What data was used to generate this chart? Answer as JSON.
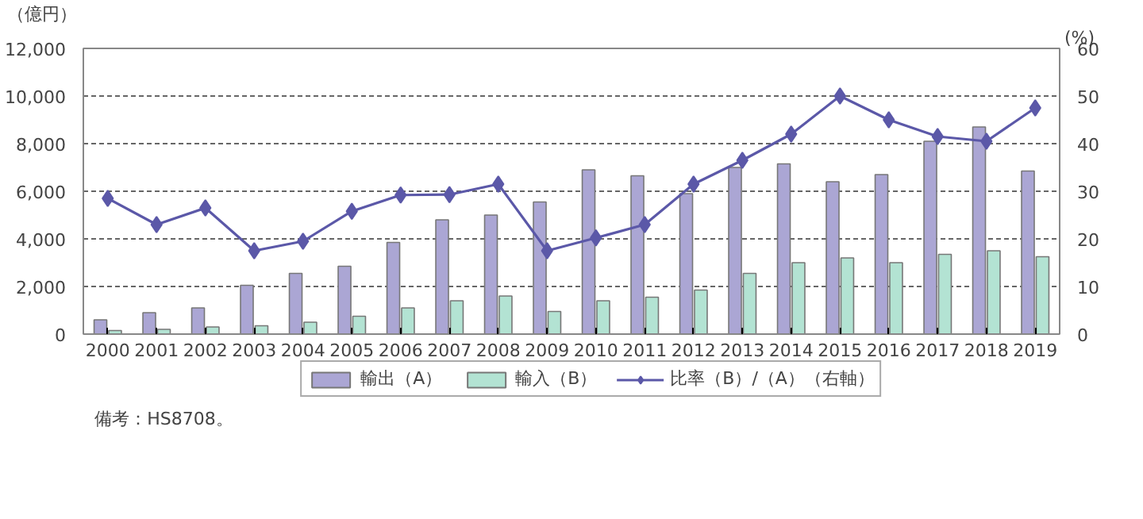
{
  "chart_data": {
    "type": "bar",
    "categories": [
      "2000",
      "2001",
      "2002",
      "2003",
      "2004",
      "2005",
      "2006",
      "2007",
      "2008",
      "2009",
      "2010",
      "2011",
      "2012",
      "2013",
      "2014",
      "2015",
      "2016",
      "2017",
      "2018",
      "2019"
    ],
    "series": [
      {
        "name": "輸出（A）",
        "color": "#aba6d4",
        "values": [
          600,
          900,
          1100,
          2050,
          2550,
          2850,
          3850,
          4800,
          5000,
          5550,
          6900,
          6650,
          5900,
          7000,
          7150,
          6400,
          6700,
          8100,
          8700,
          6850
        ]
      },
      {
        "name": "輸入（B）",
        "color": "#b3e3d3",
        "values": [
          150,
          200,
          300,
          350,
          500,
          750,
          1100,
          1400,
          1600,
          950,
          1400,
          1550,
          1850,
          2550,
          3000,
          3200,
          3000,
          3350,
          3500,
          3250
        ]
      },
      {
        "name": "比率（B）/（A）（右軸）",
        "type": "line",
        "axis": "y2",
        "color": "#5b58a8",
        "marker": "diamond",
        "values": [
          28.5,
          23,
          26.5,
          17.5,
          19.5,
          25.8,
          29.2,
          29.3,
          31.5,
          17.5,
          20.2,
          23,
          31.5,
          36.5,
          42,
          50,
          45,
          41.5,
          40.5,
          47.5
        ]
      }
    ],
    "ylabel": "（億円）",
    "y2label": "(%)",
    "ylim": [
      0,
      12000
    ],
    "yticks": [
      {
        "value": 0,
        "label": "0"
      },
      {
        "value": 2000,
        "label": "2,000"
      },
      {
        "value": 4000,
        "label": "4,000"
      },
      {
        "value": 6000,
        "label": "6,000"
      },
      {
        "value": 8000,
        "label": "8,000"
      },
      {
        "value": 10000,
        "label": "10,000"
      },
      {
        "value": 12000,
        "label": "12,000"
      }
    ],
    "y2lim": [
      0,
      60
    ],
    "y2ticks": [
      0,
      10,
      20,
      30,
      40,
      50,
      60
    ],
    "grid": "y",
    "legend": "bottom",
    "annotations": [
      "備考：HS8708。"
    ]
  }
}
